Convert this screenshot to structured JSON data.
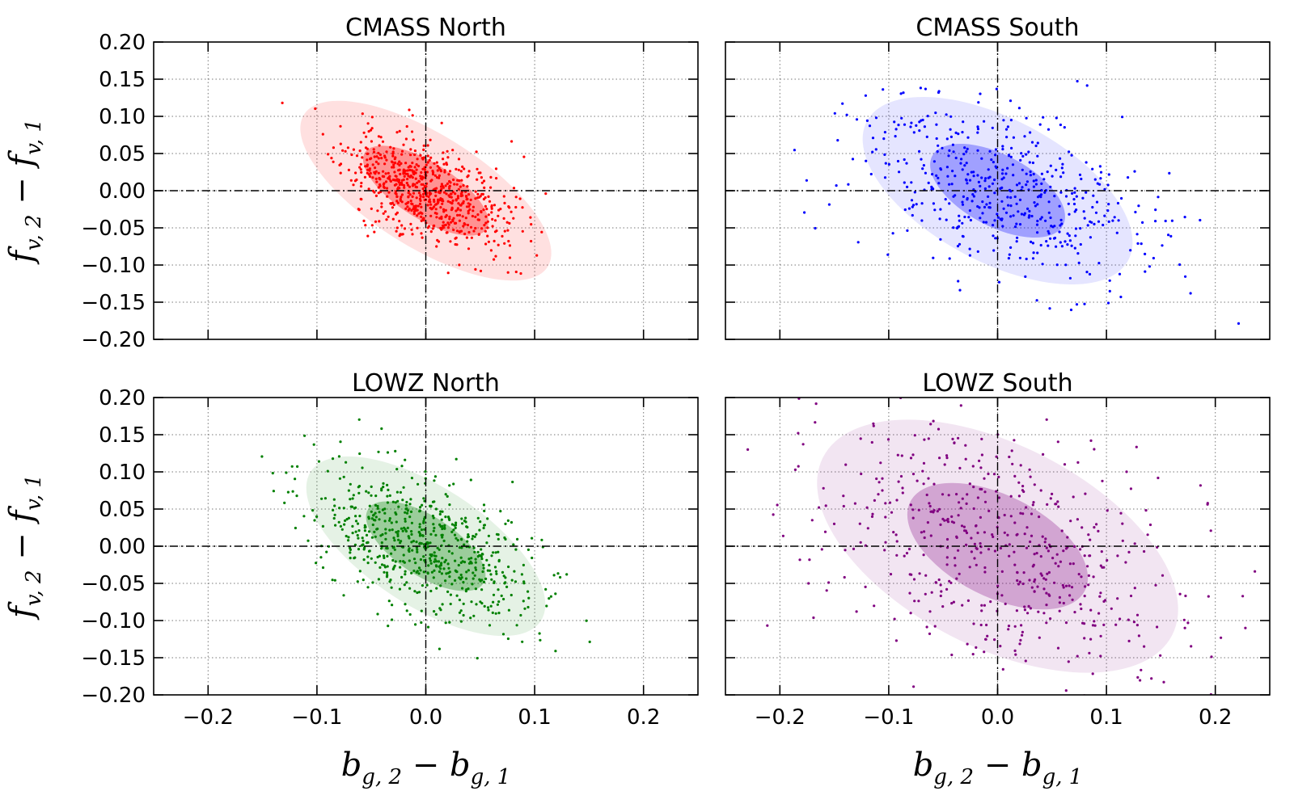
{
  "chart_data": [
    {
      "type": "scatter",
      "title": "CMASS North",
      "color": "#ff0000",
      "xlabel": "",
      "ylabel": "f_{v,2} − f_{v,1}",
      "xlim": [
        -0.25,
        0.25
      ],
      "ylim": [
        -0.2,
        0.2
      ],
      "show_x_ticklabels": false,
      "show_y_ticklabels": true,
      "n_points": 700,
      "seed": 11,
      "center": [
        0.0,
        0.0
      ],
      "sx": 0.038,
      "sy": 0.038,
      "rho": -0.55,
      "ellipses": [
        {
          "level": "1-sigma",
          "center": [
            0.0,
            0.0
          ],
          "semi_major": 0.066,
          "semi_minor": 0.038,
          "angle_deg": -32,
          "opacity": 0.35
        },
        {
          "level": "2-sigma",
          "center": [
            0.0,
            0.0
          ],
          "semi_major": 0.132,
          "semi_minor": 0.076,
          "angle_deg": -32,
          "opacity": 0.12
        }
      ]
    },
    {
      "type": "scatter",
      "title": "CMASS South",
      "color": "#0000ff",
      "xlabel": "",
      "ylabel": "",
      "xlim": [
        -0.25,
        0.25
      ],
      "ylim": [
        -0.2,
        0.2
      ],
      "show_x_ticklabels": false,
      "show_y_ticklabels": false,
      "n_points": 500,
      "seed": 23,
      "center": [
        0.0,
        0.0
      ],
      "sx": 0.065,
      "sy": 0.06,
      "rho": -0.45,
      "ellipses": [
        {
          "level": "1-sigma",
          "center": [
            0.0,
            0.0
          ],
          "semi_major": 0.068,
          "semi_minor": 0.048,
          "angle_deg": -28,
          "opacity": 0.3
        },
        {
          "level": "2-sigma",
          "center": [
            0.0,
            0.0
          ],
          "semi_major": 0.136,
          "semi_minor": 0.096,
          "angle_deg": -28,
          "opacity": 0.1
        }
      ]
    },
    {
      "type": "scatter",
      "title": "LOWZ North",
      "color": "#008000",
      "xlabel": "b_{g,2} − b_{g,1}",
      "ylabel": "f_{v,2} − f_{v,1}",
      "xlim": [
        -0.25,
        0.25
      ],
      "ylim": [
        -0.2,
        0.2
      ],
      "show_x_ticklabels": true,
      "show_y_ticklabels": true,
      "n_points": 650,
      "seed": 37,
      "center": [
        0.0,
        0.0
      ],
      "sx": 0.052,
      "sy": 0.052,
      "rho": -0.5,
      "ellipses": [
        {
          "level": "1-sigma",
          "center": [
            0.0,
            0.0
          ],
          "semi_major": 0.063,
          "semi_minor": 0.04,
          "angle_deg": -33,
          "opacity": 0.32
        },
        {
          "level": "2-sigma",
          "center": [
            0.0,
            0.0
          ],
          "semi_major": 0.126,
          "semi_minor": 0.08,
          "angle_deg": -33,
          "opacity": 0.1
        }
      ]
    },
    {
      "type": "scatter",
      "title": "LOWZ South",
      "color": "#800080",
      "xlabel": "b_{g,2} − b_{g,1}",
      "ylabel": "",
      "xlim": [
        -0.25,
        0.25
      ],
      "ylim": [
        -0.2,
        0.2
      ],
      "show_x_ticklabels": true,
      "show_y_ticklabels": false,
      "n_points": 520,
      "seed": 53,
      "center": [
        0.0,
        0.0
      ],
      "sx": 0.085,
      "sy": 0.085,
      "rho": -0.42,
      "ellipses": [
        {
          "level": "1-sigma",
          "center": [
            0.0,
            0.0
          ],
          "semi_major": 0.09,
          "semi_minor": 0.068,
          "angle_deg": -27,
          "opacity": 0.28
        },
        {
          "level": "2-sigma",
          "center": [
            0.0,
            0.0
          ],
          "semi_major": 0.18,
          "semi_minor": 0.136,
          "angle_deg": -27,
          "opacity": 0.1
        }
      ]
    }
  ],
  "axes": {
    "x_ticks": [
      -0.2,
      -0.1,
      0.0,
      0.1,
      0.2
    ],
    "x_tick_labels": [
      "−0.2",
      "−0.1",
      "0.0",
      "0.1",
      "0.2"
    ],
    "y_ticks": [
      0.2,
      0.15,
      0.1,
      0.05,
      0.0,
      -0.05,
      -0.1,
      -0.15,
      -0.2
    ],
    "y_tick_labels": [
      "0.20",
      "0.15",
      "0.10",
      "0.05",
      "0.00",
      "−0.05",
      "−0.10",
      "−0.15",
      "−0.20"
    ],
    "grid": true,
    "zero_lines": true
  },
  "labels": {
    "y_main": "f",
    "y_sub1": "v, 2",
    "y_minus": " − ",
    "y_main2": "f",
    "y_sub2": "v, 1",
    "x_main": "b",
    "x_sub1": "g, 2",
    "x_minus": " − ",
    "x_main2": "b",
    "x_sub2": "g, 1"
  }
}
